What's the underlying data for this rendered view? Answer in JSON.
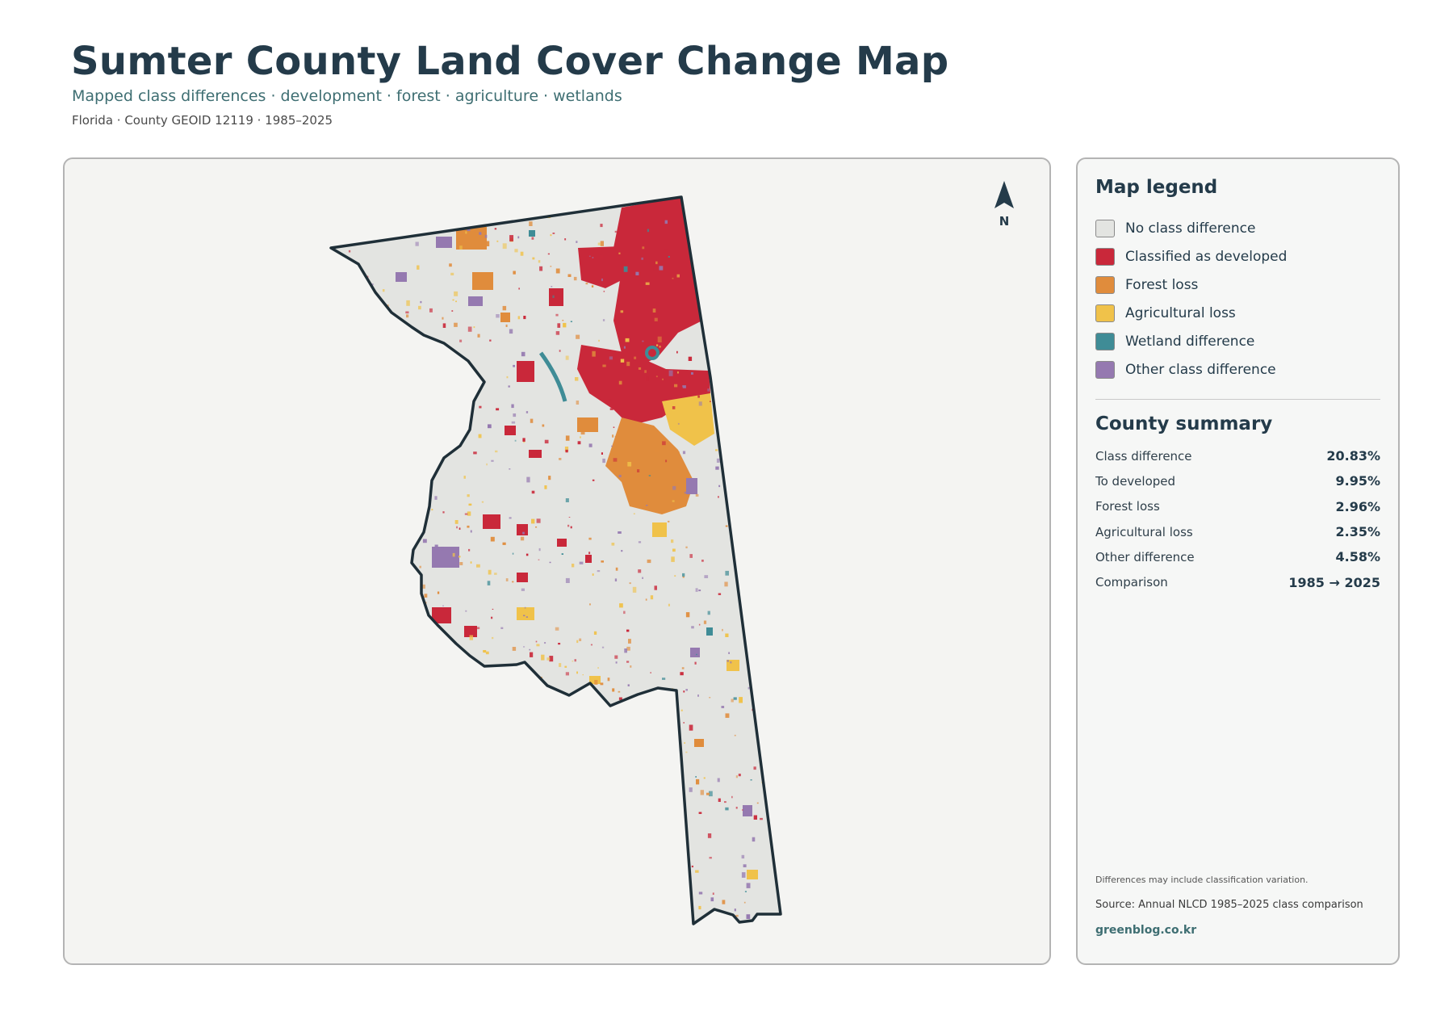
{
  "header": {
    "title": "Sumter County Land Cover Change Map",
    "subtitle": "Mapped class differences · development · forest · agriculture · wetlands",
    "meta": "Florida · County GEOID 12119 · 1985–2025"
  },
  "map": {
    "north_label": "N",
    "colors": {
      "no_change": "#e3e4e1",
      "developed": "#c9283a",
      "forest_loss": "#e08c3c",
      "agricultural_loss": "#f0c24a",
      "wetland": "#3f8c96",
      "other": "#9579b0",
      "outline": "#1f2f38"
    }
  },
  "legend": {
    "title": "Map legend",
    "items": [
      {
        "label": "No class difference",
        "color": "#e3e4e1"
      },
      {
        "label": "Classified as developed",
        "color": "#c9283a"
      },
      {
        "label": "Forest loss",
        "color": "#e08c3c"
      },
      {
        "label": "Agricultural loss",
        "color": "#f0c24a"
      },
      {
        "label": "Wetland difference",
        "color": "#3f8c96"
      },
      {
        "label": "Other class difference",
        "color": "#9579b0"
      }
    ]
  },
  "summary": {
    "title": "County summary",
    "rows": [
      {
        "label": "Class difference",
        "value": "20.83%"
      },
      {
        "label": "To developed",
        "value": "9.95%"
      },
      {
        "label": "Forest loss",
        "value": "2.96%"
      },
      {
        "label": "Agricultural loss",
        "value": "2.35%"
      },
      {
        "label": "Other difference",
        "value": "4.58%"
      },
      {
        "label": "Comparison",
        "value": "1985 → 2025"
      }
    ]
  },
  "footer": {
    "note": "Differences may include classification variation.",
    "source": "Source: Annual NLCD 1985–2025 class comparison",
    "site": "greenblog.co.kr"
  }
}
